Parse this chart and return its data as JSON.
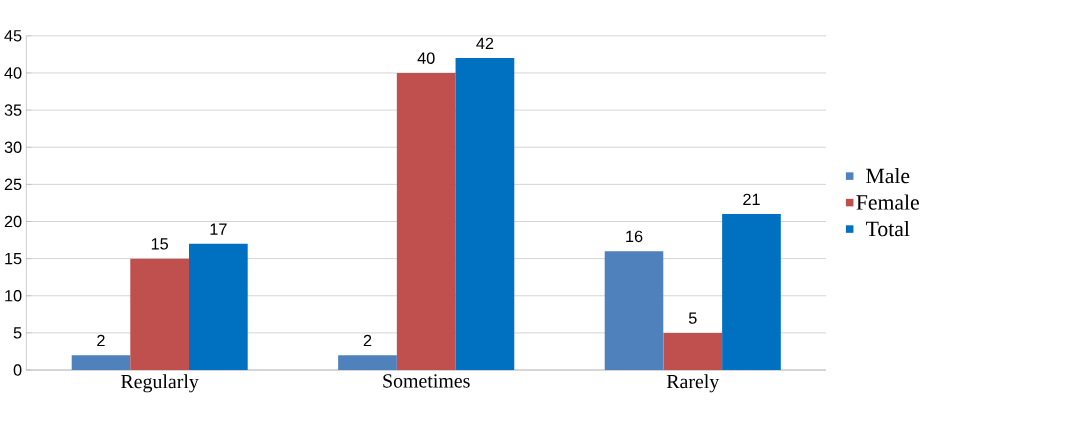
{
  "chart_data": {
    "type": "bar",
    "categories": [
      "Regularly",
      "Sometimes",
      "Rarely"
    ],
    "series": [
      {
        "name": "Male",
        "color": "#4f81bd",
        "values": [
          2,
          2,
          16
        ]
      },
      {
        "name": "Female",
        "color": "#c0504d",
        "values": [
          15,
          40,
          5
        ]
      },
      {
        "name": "Total",
        "color": "#0070c0",
        "values": [
          17,
          42,
          21
        ]
      }
    ],
    "ylim": [
      0,
      45
    ],
    "yticks": [
      0,
      5,
      10,
      15,
      20,
      25,
      30,
      35,
      40,
      45
    ],
    "grid": "y",
    "legend": "right",
    "data_labels": true
  }
}
